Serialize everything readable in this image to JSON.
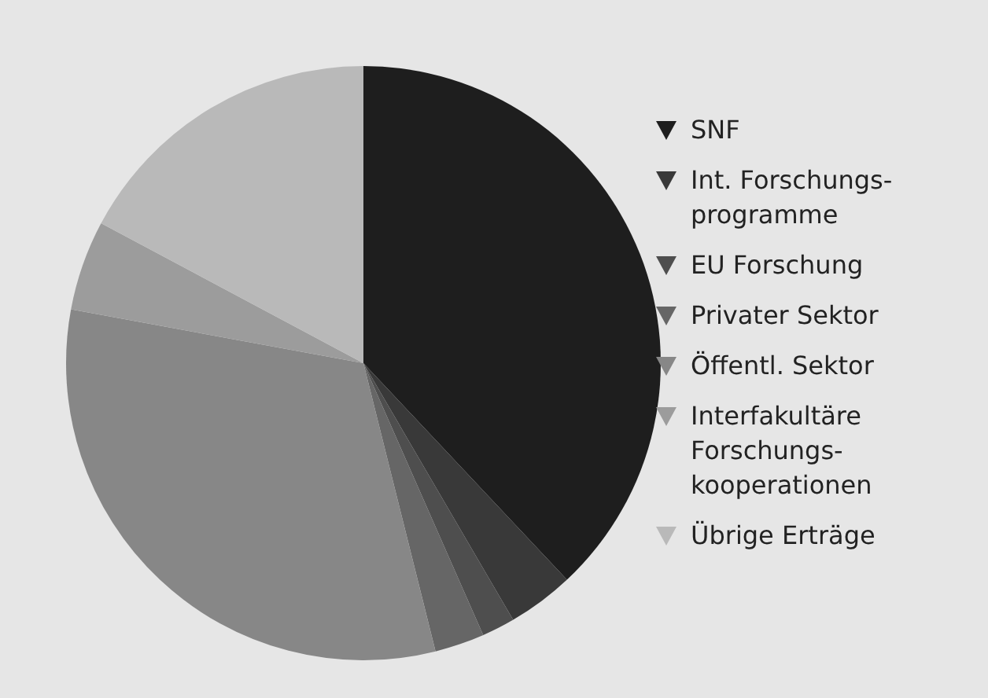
{
  "chart_data": {
    "type": "pie",
    "categories": [
      "SNF",
      "Int. Forschungs-programme",
      "EU Forschung",
      "Privater Sektor",
      "Öffentl. Sektor",
      "Interfakultäre Forschungs-kooperationen",
      "Übrige Erträge"
    ],
    "values": [
      38,
      3.6,
      1.8,
      2.7,
      31.8,
      4.9,
      17.2
    ],
    "colors": [
      "#1e1e1e",
      "#393939",
      "#4e4e4e",
      "#666666",
      "#878787",
      "#9c9c9c",
      "#b9b9b9"
    ],
    "legend": "right"
  }
}
